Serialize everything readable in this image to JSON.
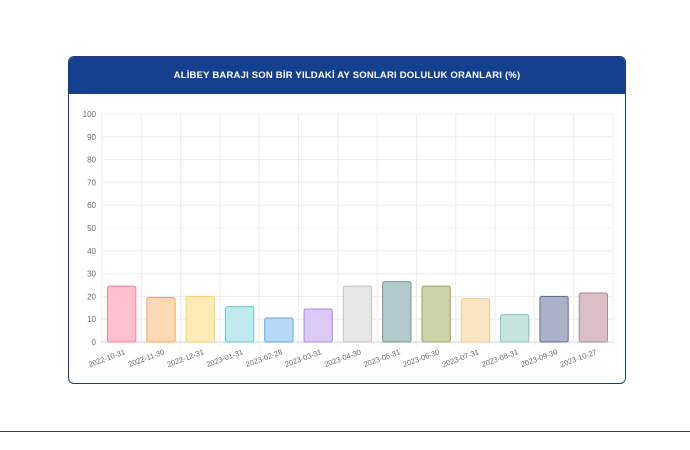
{
  "title": "ALİBEY BARAJI SON BİR YILDAKİ AY SONLARI DOLULUK ORANLARI (%)",
  "chart_data": {
    "type": "bar",
    "title": "ALİBEY BARAJI SON BİR YILDAKİ AY SONLARI DOLULUK ORANLARI (%)",
    "categories": [
      "2022-10-31",
      "2022-11-30",
      "2022-12-31",
      "2023-01-31",
      "2023-02-28",
      "2023-03-31",
      "2023-04-30",
      "2023-05-31",
      "2023-06-30",
      "2023-07-31",
      "2023-08-31",
      "2023-09-30",
      "2023-10-27"
    ],
    "values": [
      24.5,
      19.5,
      20,
      15.5,
      10.5,
      14.5,
      24.5,
      26.5,
      24.5,
      19,
      12,
      20,
      21.5
    ],
    "colors": [
      "#ffc1cf",
      "#ffd9b3",
      "#ffebb8",
      "#bfe9ec",
      "#b7d8f7",
      "#dcc9f8",
      "#e6e6e6",
      "#b3cacc",
      "#ccd2aa",
      "#f8e7c2",
      "#c4e4dd",
      "#a9b2c9",
      "#d9bec6"
    ],
    "borders": [
      "#ff7a9a",
      "#f5a35a",
      "#f5cf6a",
      "#66c9cc",
      "#5aa9e6",
      "#a58adf",
      "#c2c2c2",
      "#6f9599",
      "#9aa360",
      "#e8cc8c",
      "#84c4b5",
      "#5b6b8f",
      "#a88a95"
    ],
    "ylim": [
      0,
      100
    ],
    "yticks": [
      0,
      10,
      20,
      30,
      40,
      50,
      60,
      70,
      80,
      90,
      100
    ],
    "xlabel": "",
    "ylabel": "",
    "grid": true,
    "legend": "none"
  }
}
